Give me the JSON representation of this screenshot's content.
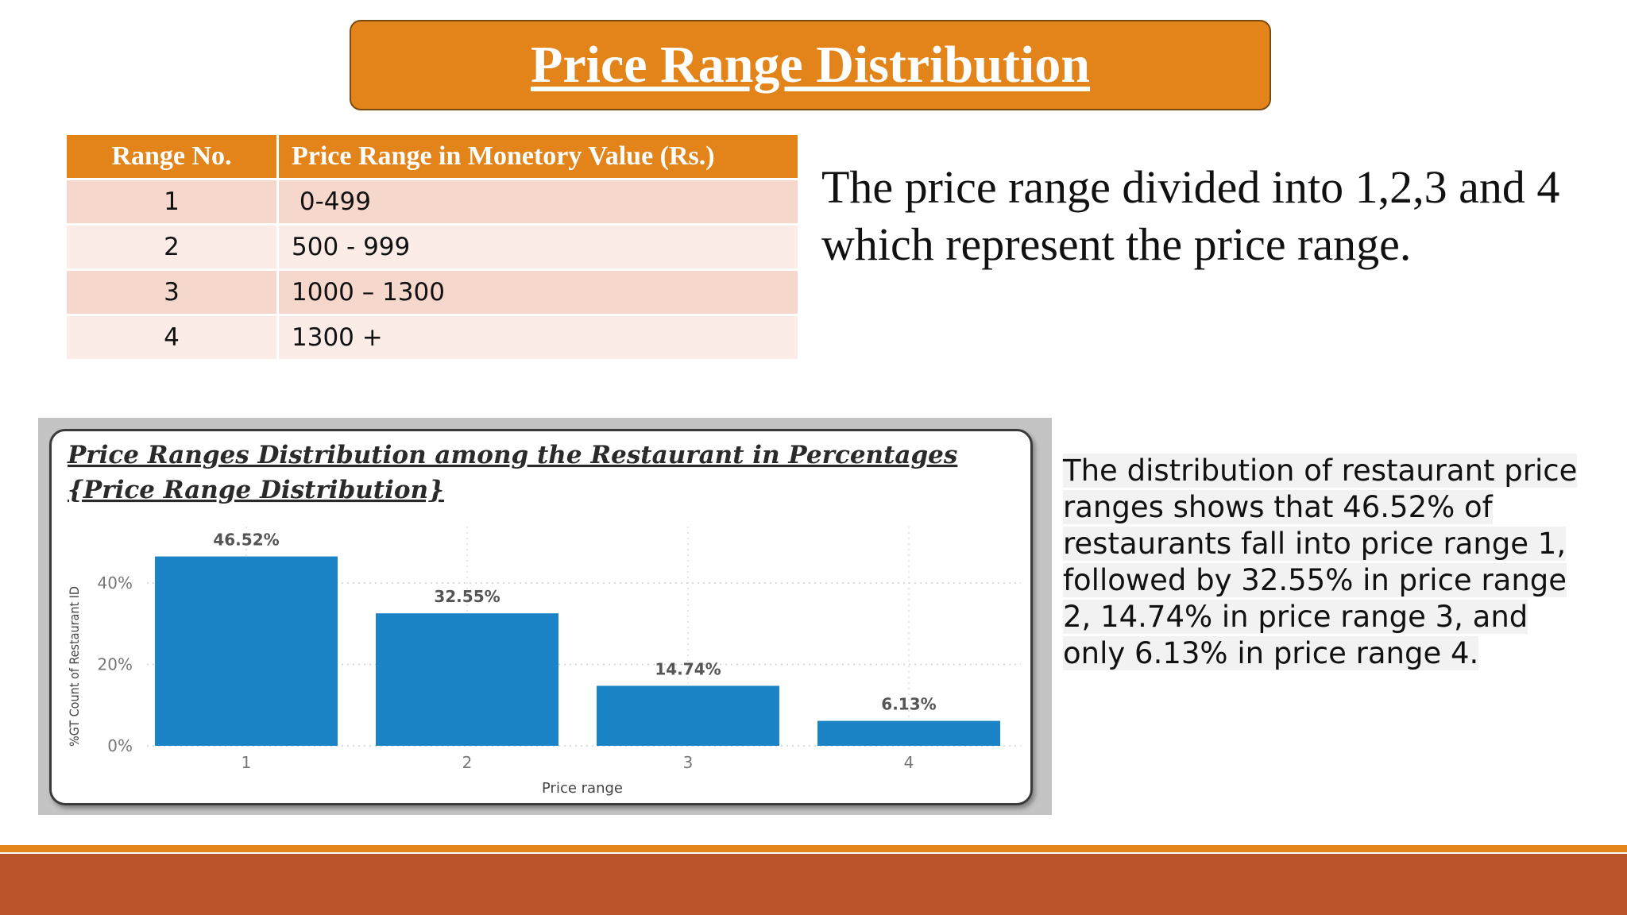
{
  "title": "Price Range Distribution",
  "table": {
    "headers": [
      "Range No.",
      "Price Range in Monetory Value (Rs.)"
    ],
    "rows": [
      [
        "1",
        " 0-499"
      ],
      [
        "2",
        "500 - 999"
      ],
      [
        "3",
        "1000 – 1300"
      ],
      [
        "4",
        "1300 +"
      ]
    ]
  },
  "right_text": "The price range divided into 1,2,3 and 4 which represent the price range.",
  "description": "The distribution of restaurant price ranges shows that 46.52% of restaurants fall into price range 1, followed by 32.55% in price range 2, 14.74% in price range 3, and only 6.13% in price range 4.",
  "colors": {
    "accent": "#e2841a",
    "footer": "#bb5428",
    "bar": "#1b84c6",
    "row_odd": "#f6d7cc",
    "row_even": "#fbece7"
  },
  "chart_data": {
    "type": "bar",
    "title_line1": "Price Ranges Distribution among the Restaurant in Percentages",
    "title_line2": "{Price Range Distribution}",
    "categories": [
      "1",
      "2",
      "3",
      "4"
    ],
    "values": [
      46.52,
      32.55,
      14.74,
      6.13
    ],
    "data_labels": [
      "46.52%",
      "32.55%",
      "14.74%",
      "6.13%"
    ],
    "xlabel": "Price range",
    "ylabel": "%GT Count of Restaurant ID",
    "yticks": [
      "0%",
      "20%",
      "40%"
    ],
    "ylim": [
      0,
      50
    ],
    "grid": true
  }
}
